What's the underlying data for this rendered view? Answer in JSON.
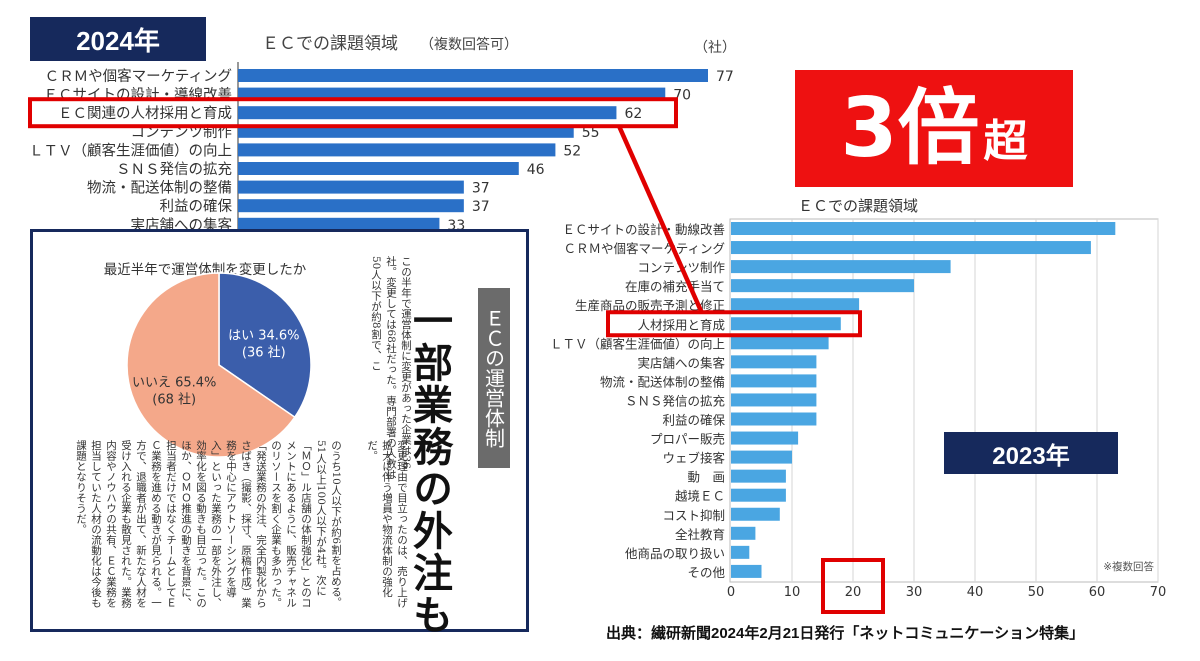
{
  "labels": {
    "year_2024": "2024年",
    "year_2023": "2023年",
    "ratio_num": "3倍",
    "ratio_suffix": "超"
  },
  "colors": {
    "bar_2024": "#2a70c7",
    "bar_2023": "#4aa6e2",
    "highlight": "#e00000",
    "navy": "#16295c",
    "pie_yes": "#3b5eab",
    "pie_no": "#f4a88a"
  },
  "chart_data": [
    {
      "type": "bar",
      "orientation": "horizontal",
      "title": "ＥＣでの課題領域",
      "subtitle": "（複数回答可）",
      "unit": "（社）",
      "categories": [
        "ＣＲＭや個客マーケティング",
        "ＥＣサイトの設計・導線改善",
        "ＥＣ関連の人材採用と育成",
        "コンテンツ制作",
        "ＬＴＶ（顧客生涯価値）の向上",
        "ＳＮＳ発信の拡充",
        "物流・配送体制の整備",
        "利益の確保",
        "実店舗への集客"
      ],
      "values": [
        77,
        70,
        62,
        55,
        52,
        46,
        37,
        37,
        33
      ],
      "highlight_index": 2
    },
    {
      "type": "bar",
      "orientation": "horizontal",
      "title": "ＥＣでの課題領域",
      "note": "※複数回答",
      "categories": [
        "ＥＣサイトの設計・動線改善",
        "ＣＲＭや個客マーケティング",
        "コンテンツ制作",
        "在庫の補充手当て",
        "生産商品の販売予測と修正",
        "人材採用と育成",
        "ＬＴＶ（顧客生涯価値）の向上",
        "実店舗への集客",
        "物流・配送体制の整備",
        "ＳＮＳ発信の拡充",
        "利益の確保",
        "プロパー販売",
        "ウェブ接客",
        "動　画",
        "越境ＥＣ",
        "コスト抑制",
        "全社教育",
        "他商品の取り扱い",
        "その他"
      ],
      "values": [
        63,
        59,
        36,
        30,
        21,
        18,
        16,
        14,
        14,
        14,
        14,
        11,
        10,
        9,
        9,
        8,
        4,
        3,
        5
      ],
      "xlim": [
        0,
        70
      ],
      "xticks": [
        0,
        10,
        20,
        30,
        40,
        50,
        60,
        70
      ],
      "highlight_index": 5,
      "highlight_tick": 20
    },
    {
      "type": "pie",
      "title": "最近半年で運営体制を変更したか",
      "slices": [
        {
          "label": "はい",
          "percent": 34.6,
          "count_label": "(36 社)"
        },
        {
          "label": "いいえ",
          "percent": 65.4,
          "count_label": "(68 社)"
        }
      ]
    }
  ],
  "article": {
    "band": "ＥＣの運営体制",
    "headline": "一部業務の外注も",
    "col1": "この半年で運営体制に変更があった企業は36社。変更しては68社だった。専門部署の人数は50人以下が約8割で、こ",
    "col2": "変更理由で目立ったのは、売り上げ拡大に伴う増員や物流体制の強化だ。",
    "col3": "のうち10人以下が約6割を占める。51人以上100人以下が4社。次に「ＭＯ」ル店舗の体制強化」とのコメントにあるように、販売チャネルのリソースを割く企業も多かった。「発送業務の外注、完全内製化からさばき（撮影、採寸、原稿作成）業務を中心にアウトソーシングを導入」といった業務の一部を外注し、効率化を図る動きも目立った。このほか、ＯＭＯ推進の動きを背景に、担当者だけではなくチームとしてＥＣ業務を進める動きが見られる。一方で、退職者が出て、新たな人材を受け入れる企業も散見された。業務内容やノウハウの共有、ＥＣ業務を担当していた人材の流動化は今後も課題となりそうだ。"
  },
  "source": "出典：繊研新聞2024年2月21日発行「ネットコミュニケーション特集」"
}
